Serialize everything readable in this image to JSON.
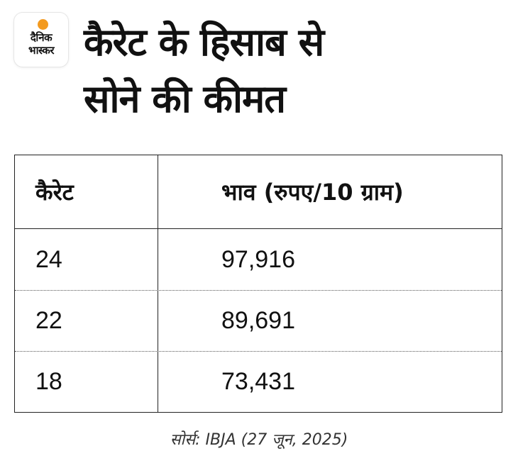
{
  "logo": {
    "line1": "दैनिक",
    "line2": "भास्कर",
    "accent_color": "#f39a1f"
  },
  "title": {
    "line1": "कैरेट के हिसाब से",
    "line2": "सोने की कीमत"
  },
  "table": {
    "headers": [
      "कैरेट",
      "भाव (रुपए/10 ग्राम)"
    ],
    "rows": [
      [
        "24",
        "97,916"
      ],
      [
        "22",
        "89,691"
      ],
      [
        "18",
        "73,431"
      ]
    ]
  },
  "source": "सोर्स: IBJA (27 जून, 2025)"
}
